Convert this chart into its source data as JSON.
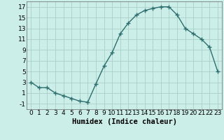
{
  "x": [
    0,
    1,
    2,
    3,
    4,
    5,
    6,
    7,
    8,
    9,
    10,
    11,
    12,
    13,
    14,
    15,
    16,
    17,
    18,
    19,
    20,
    21,
    22,
    23
  ],
  "y": [
    3,
    2,
    2,
    1,
    0.5,
    0,
    -0.5,
    -0.7,
    2.7,
    6,
    8.5,
    12,
    14,
    15.5,
    16.3,
    16.7,
    17,
    17,
    15.5,
    13,
    12,
    11,
    9.5,
    5
  ],
  "line_color": "#2d6e6e",
  "marker": "+",
  "marker_size": 4,
  "marker_linewidth": 1.0,
  "line_width": 1.0,
  "background_color": "#cceee8",
  "grid_color": "#aacfc8",
  "xlabel": "Humidex (Indice chaleur)",
  "xlim": [
    -0.5,
    23.5
  ],
  "ylim": [
    -2,
    18
  ],
  "yticks": [
    -1,
    1,
    3,
    5,
    7,
    9,
    11,
    13,
    15,
    17
  ],
  "xticks": [
    0,
    1,
    2,
    3,
    4,
    5,
    6,
    7,
    8,
    9,
    10,
    11,
    12,
    13,
    14,
    15,
    16,
    17,
    18,
    19,
    20,
    21,
    22,
    23
  ],
  "tick_fontsize": 6.5,
  "xlabel_fontsize": 7.5
}
